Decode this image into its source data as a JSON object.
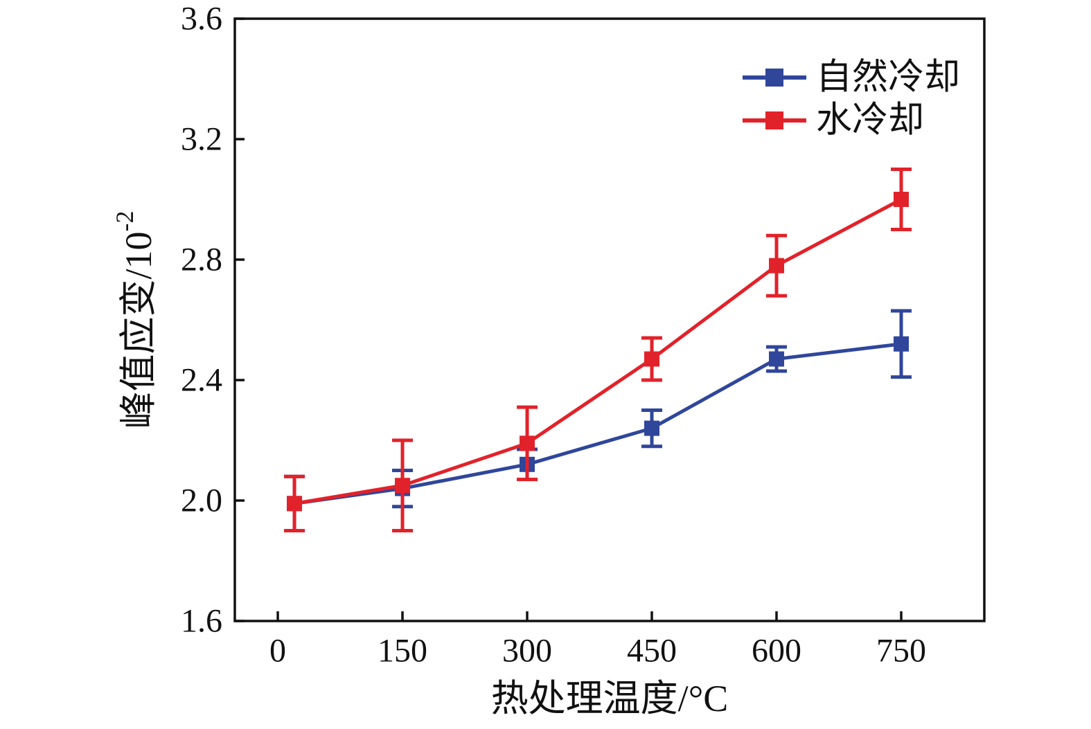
{
  "chart_data": {
    "type": "line",
    "title": "",
    "xlabel": "热处理温度/℃",
    "ylabel": "峰值应变/10⁻²",
    "render": {
      "xlabel_text": "热处理温度/°C",
      "ylabel_base": "峰值应变/10",
      "ylabel_sup": "-2"
    },
    "x": [
      20,
      150,
      300,
      450,
      600,
      750
    ],
    "series": [
      {
        "name": "自然冷却",
        "key": "natural-cooling",
        "color": "#2F469B",
        "values": [
          1.99,
          2.04,
          2.12,
          2.24,
          2.47,
          2.52
        ],
        "errors": [
          0.09,
          0.06,
          0.05,
          0.06,
          0.04,
          0.11
        ]
      },
      {
        "name": "水冷却",
        "key": "water-cooling",
        "color": "#E2222A",
        "values": [
          1.99,
          2.05,
          2.19,
          2.47,
          2.78,
          3.0
        ],
        "errors": [
          0.09,
          0.15,
          0.12,
          0.07,
          0.1,
          0.1
        ]
      }
    ],
    "xticks": {
      "values": [
        0,
        150,
        300,
        450,
        600,
        750
      ],
      "labels": [
        "0",
        "150",
        "300",
        "450",
        "600",
        "750"
      ]
    },
    "yticks": {
      "values": [
        1.6,
        2.0,
        2.4,
        2.8,
        3.2,
        3.6
      ],
      "labels": [
        "1.6",
        "2.0",
        "2.4",
        "2.8",
        "3.2",
        "3.6"
      ]
    },
    "xlim": [
      -51.7,
      850
    ],
    "ylim": [
      1.6,
      3.6
    ],
    "grid": false,
    "marker": "square",
    "error_bars": true,
    "legend": {
      "position": "top-right-inside",
      "entries": [
        "自然冷却",
        "水冷却"
      ]
    }
  }
}
